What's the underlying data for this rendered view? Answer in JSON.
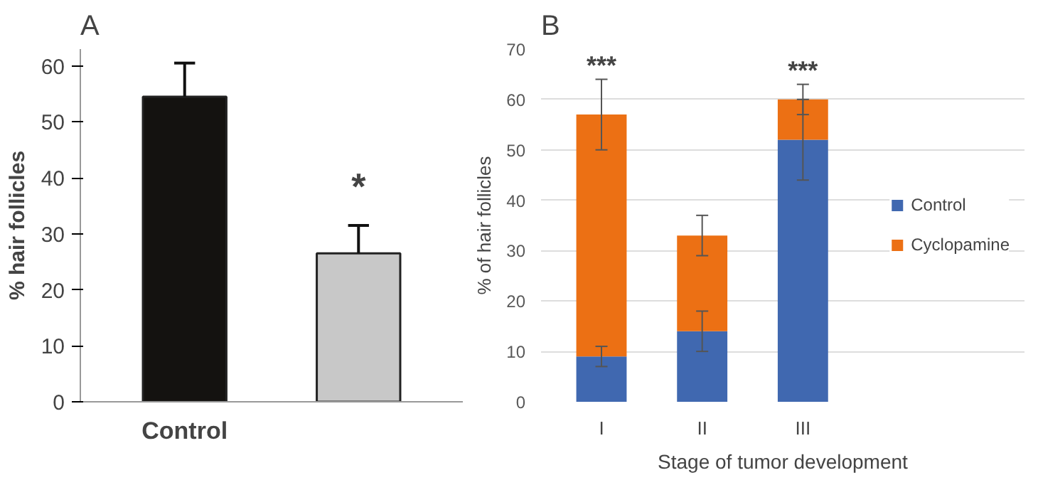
{
  "chart_data": [
    {
      "type": "bar",
      "title": "A",
      "ylabel": "% hair follicles",
      "categories": [
        "Control",
        null
      ],
      "series": [
        {
          "values": [
            54.5,
            26.5
          ],
          "colors": [
            "#141210",
            "#c8c8c8"
          ],
          "errors": [
            [
              54.5,
              60.5
            ],
            [
              26.5,
              31.5
            ]
          ]
        }
      ],
      "ylim": [
        0,
        63
      ],
      "yticks": [
        0,
        10,
        20,
        30,
        40,
        50,
        60
      ],
      "grid": false,
      "legend": false,
      "annotations": [
        "*"
      ]
    },
    {
      "type": "bar",
      "title": "B",
      "ylabel": "% of hair follicles",
      "xlabel": "Stage of tumor development",
      "categories": [
        "I",
        "II",
        "III"
      ],
      "stacked": true,
      "series": [
        {
          "name": "Control",
          "color": "#4068b0",
          "values": [
            9,
            14,
            52
          ],
          "errors": [
            [
              7,
              11
            ],
            [
              10,
              18
            ],
            [
              44,
              60
            ]
          ]
        },
        {
          "name": "Cyclopamine",
          "color": "#ec7014",
          "values": [
            48,
            19,
            8
          ],
          "errors": [
            [
              50,
              64
            ],
            [
              29,
              37
            ],
            [
              57,
              63
            ]
          ]
        }
      ],
      "ylim": [
        0,
        70
      ],
      "yticks": [
        0,
        10,
        20,
        30,
        40,
        50,
        60,
        70
      ],
      "grid": "y",
      "legend": "right",
      "annotations": [
        "***",
        "***"
      ]
    }
  ]
}
